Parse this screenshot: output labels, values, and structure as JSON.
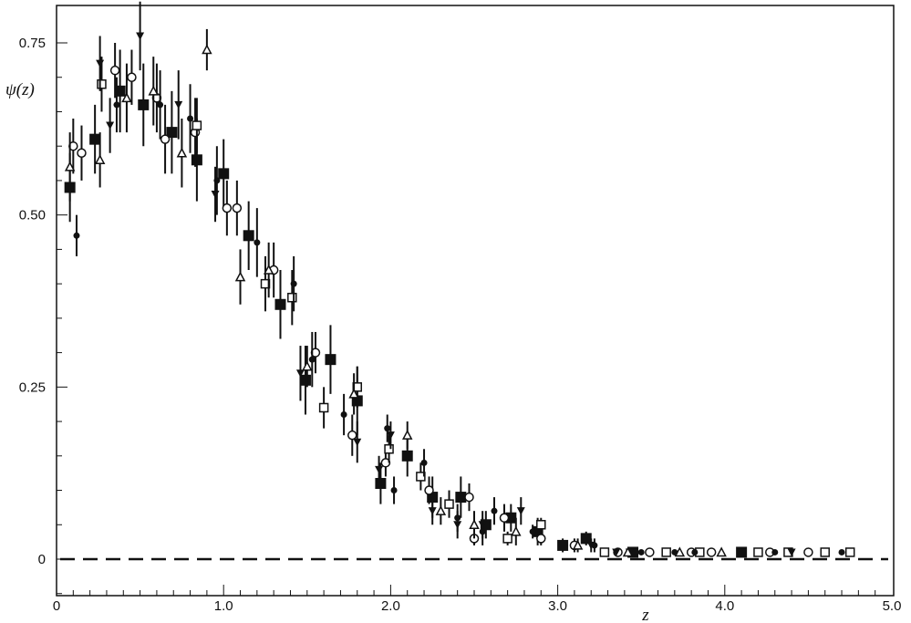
{
  "chart_data": {
    "type": "scatter",
    "title": "",
    "xlabel": "z",
    "ylabel": "ψ(z)",
    "xlim": [
      0,
      5.0
    ],
    "ylim": [
      -0.05,
      0.8
    ],
    "x_ticks": [
      {
        "value": 0,
        "label": "0"
      },
      {
        "value": 1.0,
        "label": "1.0"
      },
      {
        "value": 2.0,
        "label": "2.0"
      },
      {
        "value": 3.0,
        "label": "3.0"
      },
      {
        "value": 4.0,
        "label": "4.0"
      },
      {
        "value": 5.0,
        "label": "5.0"
      }
    ],
    "y_ticks": [
      {
        "value": 0,
        "label": "0"
      },
      {
        "value": 0.25,
        "label": "0.25"
      },
      {
        "value": 0.5,
        "label": "0.50"
      },
      {
        "value": 0.75,
        "label": "0.75"
      }
    ],
    "grid": false,
    "legend": "none",
    "reference_line": {
      "y": 0,
      "style": "dashed"
    },
    "series": [
      {
        "marker": "filled-square",
        "points": [
          [
            0.08,
            0.54,
            0.05
          ],
          [
            0.23,
            0.61,
            0.05
          ],
          [
            0.38,
            0.68,
            0.06
          ],
          [
            0.52,
            0.66,
            0.06
          ],
          [
            0.69,
            0.62,
            0.06
          ],
          [
            0.84,
            0.58,
            0.06
          ],
          [
            1.0,
            0.56,
            0.05
          ],
          [
            1.15,
            0.47,
            0.05
          ],
          [
            1.34,
            0.37,
            0.05
          ],
          [
            1.49,
            0.26,
            0.05
          ],
          [
            1.64,
            0.29,
            0.05
          ],
          [
            1.8,
            0.23,
            0.05
          ],
          [
            1.94,
            0.11,
            0.03
          ],
          [
            2.1,
            0.15,
            0.03
          ],
          [
            2.25,
            0.09,
            0.03
          ],
          [
            2.42,
            0.09,
            0.03
          ],
          [
            2.57,
            0.05,
            0.02
          ],
          [
            2.72,
            0.06,
            0.02
          ],
          [
            2.88,
            0.04,
            0.02
          ],
          [
            3.03,
            0.02,
            0.01
          ],
          [
            3.17,
            0.03,
            0.01
          ],
          [
            3.45,
            0.01,
            0
          ],
          [
            4.1,
            0.01,
            0
          ]
        ]
      },
      {
        "marker": "open-circle",
        "points": [
          [
            0.1,
            0.6,
            0.04
          ],
          [
            0.15,
            0.59,
            0.04
          ],
          [
            0.35,
            0.71,
            0.04
          ],
          [
            0.45,
            0.7,
            0.04
          ],
          [
            0.6,
            0.67,
            0.05
          ],
          [
            0.65,
            0.61,
            0.05
          ],
          [
            0.83,
            0.62,
            0.05
          ],
          [
            1.02,
            0.51,
            0.04
          ],
          [
            1.08,
            0.51,
            0.04
          ],
          [
            1.3,
            0.42,
            0.04
          ],
          [
            1.55,
            0.3,
            0.03
          ],
          [
            1.77,
            0.18,
            0.03
          ],
          [
            1.97,
            0.14,
            0.02
          ],
          [
            2.23,
            0.1,
            0.02
          ],
          [
            2.47,
            0.09,
            0.02
          ],
          [
            2.5,
            0.03,
            0.01
          ],
          [
            2.68,
            0.06,
            0.02
          ],
          [
            2.9,
            0.03,
            0.01
          ],
          [
            3.1,
            0.02,
            0.01
          ],
          [
            3.36,
            0.01,
            0
          ],
          [
            3.55,
            0.01,
            0
          ],
          [
            3.8,
            0.01,
            0
          ],
          [
            3.92,
            0.01,
            0
          ],
          [
            4.27,
            0.01,
            0
          ],
          [
            4.5,
            0.01,
            0
          ]
        ]
      },
      {
        "marker": "open-square",
        "points": [
          [
            0.27,
            0.69,
            0.04
          ],
          [
            0.84,
            0.63,
            0.04
          ],
          [
            1.25,
            0.4,
            0.04
          ],
          [
            1.41,
            0.38,
            0.04
          ],
          [
            1.6,
            0.22,
            0.03
          ],
          [
            1.8,
            0.25,
            0.03
          ],
          [
            1.99,
            0.16,
            0.02
          ],
          [
            2.18,
            0.12,
            0.02
          ],
          [
            2.35,
            0.08,
            0.02
          ],
          [
            2.7,
            0.03,
            0.01
          ],
          [
            2.9,
            0.05,
            0.01
          ],
          [
            3.28,
            0.01,
            0
          ],
          [
            3.65,
            0.01,
            0
          ],
          [
            3.85,
            0.01,
            0
          ],
          [
            4.2,
            0.01,
            0
          ],
          [
            4.38,
            0.01,
            0
          ],
          [
            4.6,
            0.01,
            0
          ],
          [
            4.75,
            0.01,
            0
          ]
        ]
      },
      {
        "marker": "filled-triangle-down",
        "points": [
          [
            0.26,
            0.72,
            0.04
          ],
          [
            0.32,
            0.63,
            0.04
          ],
          [
            0.5,
            0.76,
            0.05
          ],
          [
            0.73,
            0.66,
            0.05
          ],
          [
            0.95,
            0.53,
            0.04
          ],
          [
            1.46,
            0.27,
            0.04
          ],
          [
            1.8,
            0.17,
            0.03
          ],
          [
            1.93,
            0.13,
            0.02
          ],
          [
            2.0,
            0.18,
            0.02
          ],
          [
            2.25,
            0.07,
            0.02
          ],
          [
            2.4,
            0.05,
            0.02
          ],
          [
            2.55,
            0.05,
            0.02
          ],
          [
            2.78,
            0.07,
            0.02
          ],
          [
            3.2,
            0.02,
            0.01
          ],
          [
            3.35,
            0.01,
            0
          ],
          [
            3.43,
            0.01,
            0
          ],
          [
            4.4,
            0.01,
            0
          ]
        ]
      },
      {
        "marker": "open-triangle",
        "points": [
          [
            0.08,
            0.57,
            0.05
          ],
          [
            0.26,
            0.58,
            0.04
          ],
          [
            0.42,
            0.67,
            0.05
          ],
          [
            0.58,
            0.68,
            0.05
          ],
          [
            0.75,
            0.59,
            0.05
          ],
          [
            0.9,
            0.74,
            0.03
          ],
          [
            1.1,
            0.41,
            0.04
          ],
          [
            1.27,
            0.42,
            0.04
          ],
          [
            1.5,
            0.28,
            0.03
          ],
          [
            1.78,
            0.24,
            0.03
          ],
          [
            2.1,
            0.18,
            0.02
          ],
          [
            2.3,
            0.07,
            0.02
          ],
          [
            2.5,
            0.05,
            0.02
          ],
          [
            2.75,
            0.04,
            0.02
          ],
          [
            3.12,
            0.02,
            0.01
          ],
          [
            3.42,
            0.01,
            0
          ],
          [
            3.73,
            0.01,
            0
          ],
          [
            3.98,
            0.01,
            0
          ]
        ]
      },
      {
        "marker": "filled-circle",
        "points": [
          [
            0.12,
            0.47,
            0.03
          ],
          [
            0.36,
            0.66,
            0.04
          ],
          [
            0.62,
            0.66,
            0.05
          ],
          [
            0.8,
            0.64,
            0.05
          ],
          [
            0.96,
            0.55,
            0.05
          ],
          [
            1.2,
            0.46,
            0.05
          ],
          [
            1.42,
            0.4,
            0.04
          ],
          [
            1.53,
            0.29,
            0.04
          ],
          [
            1.72,
            0.21,
            0.03
          ],
          [
            1.98,
            0.19,
            0.02
          ],
          [
            2.02,
            0.1,
            0.02
          ],
          [
            2.2,
            0.14,
            0.02
          ],
          [
            2.4,
            0.06,
            0.02
          ],
          [
            2.55,
            0.04,
            0.02
          ],
          [
            2.62,
            0.07,
            0.02
          ],
          [
            2.85,
            0.04,
            0.01
          ],
          [
            3.22,
            0.02,
            0.01
          ],
          [
            3.5,
            0.01,
            0
          ],
          [
            3.7,
            0.01,
            0
          ],
          [
            3.82,
            0.01,
            0
          ],
          [
            4.3,
            0.01,
            0
          ],
          [
            4.7,
            0.01,
            0
          ]
        ]
      }
    ]
  }
}
